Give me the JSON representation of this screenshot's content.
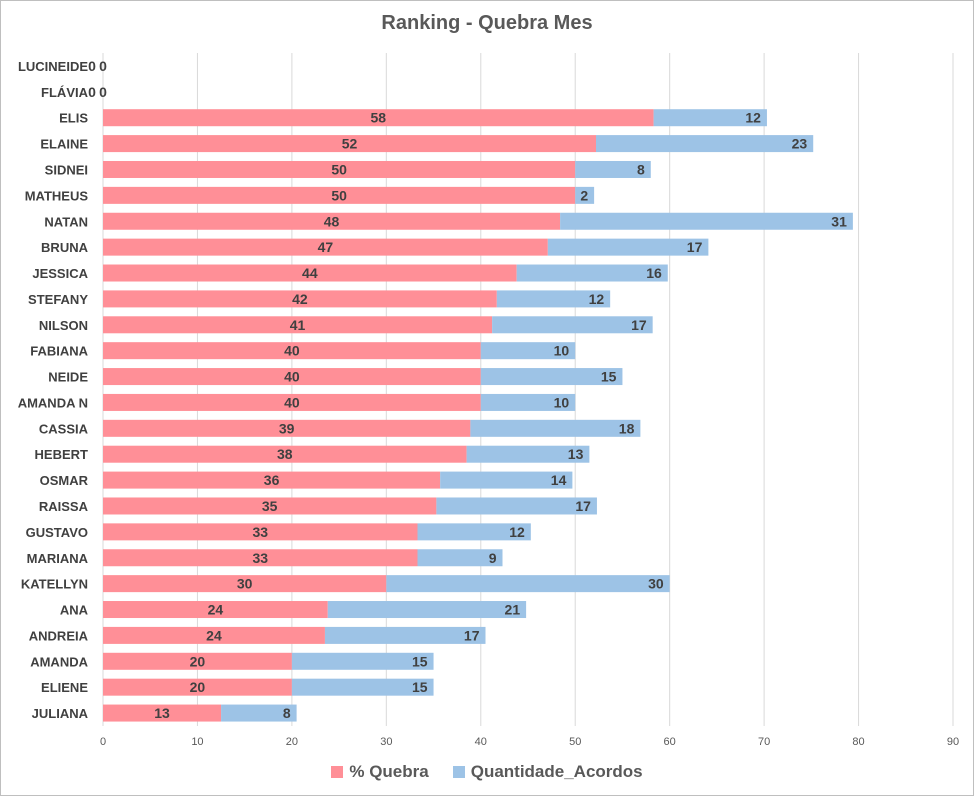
{
  "chart_data": {
    "type": "bar",
    "orientation": "horizontal",
    "stacked": true,
    "title": "Ranking - Quebra Mes",
    "categories": [
      "LUCINEIDE",
      "FLÁVIA",
      "ELIS",
      "ELAINE",
      "SIDNEI",
      "MATHEUS",
      "NATAN",
      "BRUNA",
      "JESSICA",
      "STEFANY",
      "NILSON",
      "FABIANA",
      "NEIDE",
      "AMANDA N",
      "CASSIA",
      "HEBERT",
      "OSMAR",
      "RAISSA",
      "GUSTAVO",
      "MARIANA",
      "KATELLYN",
      "ANA",
      "ANDREIA",
      "AMANDA",
      "ELIENE",
      "JULIANA"
    ],
    "series": [
      {
        "name": "% Quebra",
        "color": "#ff8f97",
        "values": [
          0,
          0,
          58.3,
          52.2,
          50,
          50,
          48.4,
          47.1,
          43.8,
          41.7,
          41.2,
          40,
          40,
          40,
          38.9,
          38.5,
          35.7,
          35.3,
          33.3,
          33.3,
          30,
          23.8,
          23.5,
          20,
          20,
          12.5
        ],
        "labels": [
          "0",
          "0",
          "58",
          "52",
          "50",
          "50",
          "48",
          "47",
          "44",
          "42",
          "41",
          "40",
          "40",
          "40",
          "39",
          "38",
          "36",
          "35",
          "33",
          "33",
          "30",
          "24",
          "24",
          "20",
          "20",
          "13"
        ]
      },
      {
        "name": "Quantidade_Acordos",
        "color": "#9dc3e6",
        "values": [
          0,
          0,
          12,
          23,
          8,
          2,
          31,
          17,
          16,
          12,
          17,
          10,
          15,
          10,
          18,
          13,
          14,
          17,
          12,
          9,
          30,
          21,
          17,
          15,
          15,
          8
        ],
        "labels": [
          "0",
          "0",
          "12",
          "23",
          "8",
          "2",
          "31",
          "17",
          "16",
          "12",
          "17",
          "10",
          "15",
          "10",
          "18",
          "13",
          "14",
          "17",
          "12",
          "9",
          "30",
          "21",
          "17",
          "15",
          "15",
          "8"
        ]
      }
    ],
    "xlim": [
      0,
      90
    ],
    "xticks": [
      "0",
      "10",
      "20",
      "30",
      "40",
      "50",
      "60",
      "70",
      "80",
      "90"
    ],
    "grid": true,
    "legend_position": "bottom"
  }
}
